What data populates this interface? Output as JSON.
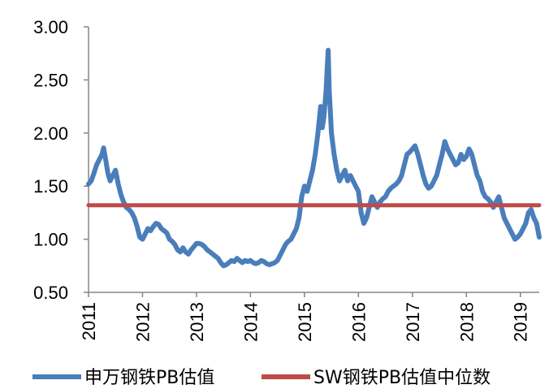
{
  "chart_data": {
    "type": "line",
    "title": "",
    "xlabel": "",
    "ylabel": "",
    "xlim": [
      2011.0,
      2019.35
    ],
    "ylim": [
      0.5,
      3.0
    ],
    "x_tick_labels": [
      "2011",
      "2012",
      "2013",
      "2014",
      "2015",
      "2016",
      "2017",
      "2018",
      "2019"
    ],
    "y_tick_labels": [
      "0.50",
      "1.00",
      "1.50",
      "2.00",
      "2.50",
      "3.00"
    ],
    "grid": false,
    "legend_position": "bottom",
    "series": [
      {
        "name": "申万钢铁PB估值",
        "color": "#4A7EBB",
        "points": [
          [
            2011.0,
            1.52
          ],
          [
            2011.05,
            1.55
          ],
          [
            2011.1,
            1.62
          ],
          [
            2011.15,
            1.7
          ],
          [
            2011.2,
            1.75
          ],
          [
            2011.25,
            1.8
          ],
          [
            2011.28,
            1.86
          ],
          [
            2011.32,
            1.74
          ],
          [
            2011.36,
            1.62
          ],
          [
            2011.4,
            1.55
          ],
          [
            2011.45,
            1.6
          ],
          [
            2011.5,
            1.65
          ],
          [
            2011.55,
            1.52
          ],
          [
            2011.6,
            1.42
          ],
          [
            2011.65,
            1.35
          ],
          [
            2011.7,
            1.3
          ],
          [
            2011.75,
            1.28
          ],
          [
            2011.8,
            1.25
          ],
          [
            2011.85,
            1.2
          ],
          [
            2011.9,
            1.12
          ],
          [
            2011.95,
            1.02
          ],
          [
            2012.0,
            1.0
          ],
          [
            2012.05,
            1.05
          ],
          [
            2012.1,
            1.1
          ],
          [
            2012.15,
            1.08
          ],
          [
            2012.2,
            1.12
          ],
          [
            2012.25,
            1.15
          ],
          [
            2012.3,
            1.14
          ],
          [
            2012.35,
            1.1
          ],
          [
            2012.4,
            1.08
          ],
          [
            2012.45,
            1.06
          ],
          [
            2012.5,
            1.0
          ],
          [
            2012.55,
            0.98
          ],
          [
            2012.6,
            0.95
          ],
          [
            2012.65,
            0.9
          ],
          [
            2012.7,
            0.88
          ],
          [
            2012.75,
            0.92
          ],
          [
            2012.8,
            0.88
          ],
          [
            2012.85,
            0.86
          ],
          [
            2012.9,
            0.9
          ],
          [
            2012.95,
            0.93
          ],
          [
            2013.0,
            0.96
          ],
          [
            2013.05,
            0.96
          ],
          [
            2013.1,
            0.95
          ],
          [
            2013.15,
            0.93
          ],
          [
            2013.2,
            0.9
          ],
          [
            2013.25,
            0.88
          ],
          [
            2013.3,
            0.86
          ],
          [
            2013.35,
            0.84
          ],
          [
            2013.4,
            0.82
          ],
          [
            2013.45,
            0.78
          ],
          [
            2013.5,
            0.75
          ],
          [
            2013.55,
            0.76
          ],
          [
            2013.6,
            0.78
          ],
          [
            2013.65,
            0.8
          ],
          [
            2013.7,
            0.79
          ],
          [
            2013.75,
            0.82
          ],
          [
            2013.8,
            0.8
          ],
          [
            2013.85,
            0.78
          ],
          [
            2013.9,
            0.8
          ],
          [
            2013.95,
            0.79
          ],
          [
            2014.0,
            0.8
          ],
          [
            2014.05,
            0.78
          ],
          [
            2014.1,
            0.77
          ],
          [
            2014.15,
            0.78
          ],
          [
            2014.2,
            0.8
          ],
          [
            2014.25,
            0.79
          ],
          [
            2014.3,
            0.77
          ],
          [
            2014.35,
            0.76
          ],
          [
            2014.4,
            0.77
          ],
          [
            2014.45,
            0.78
          ],
          [
            2014.5,
            0.8
          ],
          [
            2014.55,
            0.85
          ],
          [
            2014.6,
            0.9
          ],
          [
            2014.65,
            0.95
          ],
          [
            2014.7,
            0.98
          ],
          [
            2014.75,
            1.0
          ],
          [
            2014.8,
            1.05
          ],
          [
            2014.85,
            1.1
          ],
          [
            2014.9,
            1.2
          ],
          [
            2014.95,
            1.4
          ],
          [
            2015.0,
            1.5
          ],
          [
            2015.05,
            1.45
          ],
          [
            2015.1,
            1.55
          ],
          [
            2015.15,
            1.65
          ],
          [
            2015.2,
            1.8
          ],
          [
            2015.25,
            2.0
          ],
          [
            2015.3,
            2.25
          ],
          [
            2015.33,
            2.05
          ],
          [
            2015.36,
            2.15
          ],
          [
            2015.4,
            2.4
          ],
          [
            2015.42,
            2.6
          ],
          [
            2015.44,
            2.78
          ],
          [
            2015.46,
            2.4
          ],
          [
            2015.48,
            2.2
          ],
          [
            2015.5,
            2.0
          ],
          [
            2015.55,
            1.8
          ],
          [
            2015.6,
            1.65
          ],
          [
            2015.65,
            1.55
          ],
          [
            2015.7,
            1.6
          ],
          [
            2015.75,
            1.65
          ],
          [
            2015.8,
            1.55
          ],
          [
            2015.85,
            1.6
          ],
          [
            2015.9,
            1.55
          ],
          [
            2015.95,
            1.5
          ],
          [
            2016.0,
            1.45
          ],
          [
            2016.05,
            1.25
          ],
          [
            2016.1,
            1.15
          ],
          [
            2016.15,
            1.2
          ],
          [
            2016.2,
            1.3
          ],
          [
            2016.25,
            1.4
          ],
          [
            2016.3,
            1.35
          ],
          [
            2016.35,
            1.3
          ],
          [
            2016.4,
            1.35
          ],
          [
            2016.45,
            1.38
          ],
          [
            2016.5,
            1.4
          ],
          [
            2016.55,
            1.45
          ],
          [
            2016.6,
            1.48
          ],
          [
            2016.65,
            1.5
          ],
          [
            2016.7,
            1.52
          ],
          [
            2016.75,
            1.55
          ],
          [
            2016.8,
            1.6
          ],
          [
            2016.85,
            1.7
          ],
          [
            2016.9,
            1.8
          ],
          [
            2016.95,
            1.82
          ],
          [
            2017.0,
            1.85
          ],
          [
            2017.05,
            1.88
          ],
          [
            2017.1,
            1.8
          ],
          [
            2017.15,
            1.7
          ],
          [
            2017.2,
            1.6
          ],
          [
            2017.25,
            1.52
          ],
          [
            2017.3,
            1.48
          ],
          [
            2017.35,
            1.5
          ],
          [
            2017.4,
            1.55
          ],
          [
            2017.45,
            1.6
          ],
          [
            2017.5,
            1.7
          ],
          [
            2017.55,
            1.8
          ],
          [
            2017.6,
            1.92
          ],
          [
            2017.65,
            1.85
          ],
          [
            2017.7,
            1.8
          ],
          [
            2017.75,
            1.75
          ],
          [
            2017.8,
            1.7
          ],
          [
            2017.85,
            1.72
          ],
          [
            2017.9,
            1.8
          ],
          [
            2017.95,
            1.75
          ],
          [
            2018.0,
            1.78
          ],
          [
            2018.05,
            1.85
          ],
          [
            2018.1,
            1.8
          ],
          [
            2018.15,
            1.7
          ],
          [
            2018.2,
            1.6
          ],
          [
            2018.25,
            1.55
          ],
          [
            2018.3,
            1.45
          ],
          [
            2018.35,
            1.4
          ],
          [
            2018.4,
            1.38
          ],
          [
            2018.45,
            1.35
          ],
          [
            2018.5,
            1.3
          ],
          [
            2018.55,
            1.35
          ],
          [
            2018.6,
            1.4
          ],
          [
            2018.65,
            1.3
          ],
          [
            2018.7,
            1.2
          ],
          [
            2018.75,
            1.15
          ],
          [
            2018.8,
            1.1
          ],
          [
            2018.85,
            1.05
          ],
          [
            2018.9,
            1.0
          ],
          [
            2018.95,
            1.02
          ],
          [
            2019.0,
            1.05
          ],
          [
            2019.05,
            1.1
          ],
          [
            2019.1,
            1.15
          ],
          [
            2019.15,
            1.25
          ],
          [
            2019.2,
            1.28
          ],
          [
            2019.25,
            1.2
          ],
          [
            2019.3,
            1.15
          ],
          [
            2019.35,
            1.02
          ]
        ]
      },
      {
        "name": "SW钢铁PB估值中位数",
        "color": "#BE4B48",
        "points": [
          [
            2011.0,
            1.32
          ],
          [
            2019.35,
            1.32
          ]
        ]
      }
    ]
  }
}
